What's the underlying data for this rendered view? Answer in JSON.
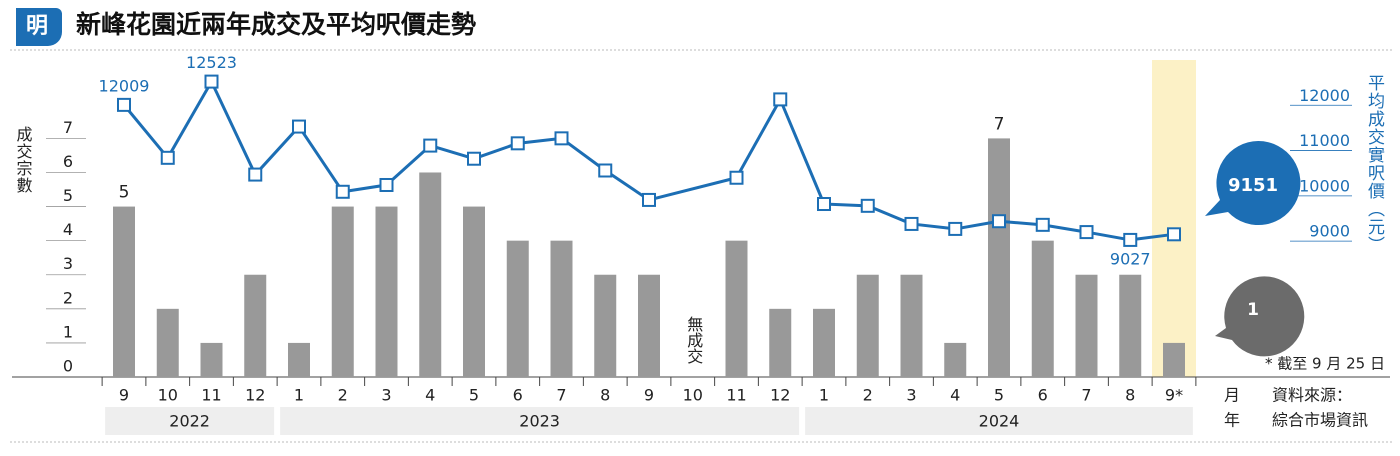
{
  "chart_data": {
    "type": "bar",
    "logo": "明",
    "title": "新峰花園近兩年成交及平均呎價走勢",
    "categories": [
      "9",
      "10",
      "11",
      "12",
      "1",
      "2",
      "3",
      "4",
      "5",
      "6",
      "7",
      "8",
      "9",
      "10",
      "11",
      "12",
      "1",
      "2",
      "3",
      "4",
      "5",
      "6",
      "7",
      "8",
      "9*"
    ],
    "year_groups": [
      "2022",
      "2023",
      "2024"
    ],
    "x_month_label": "月",
    "x_year_label": "年",
    "ylabel": "成交宗數",
    "y2label": "平均成交實呎價（元）",
    "series": [
      {
        "type": "bar",
        "color": "#999999",
        "values": [
          5,
          2,
          1,
          3,
          1,
          5,
          5,
          6,
          5,
          4,
          4,
          3,
          3,
          0,
          4,
          2,
          2,
          3,
          3,
          1,
          7,
          4,
          3,
          3,
          1
        ]
      },
      {
        "type": "line",
        "axis": "y2",
        "color": "#1c6eb4",
        "values": [
          12009,
          10840,
          12523,
          10470,
          11530,
          10090,
          10240,
          11110,
          10820,
          11160,
          11270,
          10560,
          9910,
          null,
          10400,
          12130,
          9820,
          9780,
          9380,
          9270,
          9440,
          9360,
          9200,
          9027,
          9151
        ]
      }
    ],
    "ylim": [
      0,
      9.3
    ],
    "yticks": [
      0,
      1,
      2,
      3,
      4,
      5,
      6,
      7
    ],
    "y2lim": [
      6000,
      13000
    ],
    "y2ticks": [
      9000,
      10000,
      11000,
      12000
    ],
    "no_deal_note": "無成交",
    "footnote": "* 截至 9 月 25 日",
    "source_label": "資料來源：",
    "source_name": "綜合市場資訊",
    "highlight_color": "#fcf1c6"
  }
}
